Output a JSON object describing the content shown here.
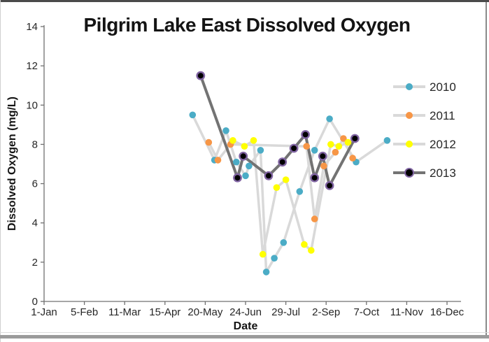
{
  "window": {
    "background_color": "#FFFFFF",
    "frame_top_color": "#4A4A4A",
    "frame_bottom_color": "#9B9B9B"
  },
  "chart_data": {
    "type": "line",
    "title": "Pilgrim Lake East Dissolved Oxygen",
    "xlabel": "Date",
    "ylabel": "Dissolved Oxygen (mg/L)",
    "grid": false,
    "legend_position": "right",
    "x_unit": "day of year (1-Jan = 0)",
    "xlim": [
      0,
      364
    ],
    "ylim": [
      0,
      14
    ],
    "y_ticks": [
      0,
      2,
      4,
      6,
      8,
      10,
      12,
      14
    ],
    "x_ticks": [
      {
        "day": 0,
        "label": "1-Jan"
      },
      {
        "day": 35,
        "label": "5-Feb"
      },
      {
        "day": 70,
        "label": "11-Mar"
      },
      {
        "day": 105,
        "label": "15-Apr"
      },
      {
        "day": 140,
        "label": "20-May"
      },
      {
        "day": 175,
        "label": "24-Jun"
      },
      {
        "day": 210,
        "label": "29-Jul"
      },
      {
        "day": 245,
        "label": "2-Sep"
      },
      {
        "day": 280,
        "label": "7-Oct"
      },
      {
        "day": 315,
        "label": "11-Nov"
      },
      {
        "day": 350,
        "label": "16-Dec"
      }
    ],
    "axis_color": "#707070",
    "tick_label_color": "#262626",
    "series": [
      {
        "name": "2010",
        "marker_color": "#4BACC6",
        "line_color": "#D9D9D9",
        "marker_size": "small",
        "points": [
          [
            129,
            9.5
          ],
          [
            148,
            7.2
          ],
          [
            158,
            8.7
          ],
          [
            167,
            7.1
          ],
          [
            175,
            6.4
          ],
          [
            178,
            6.9
          ],
          [
            188,
            7.7
          ],
          [
            193,
            1.5
          ],
          [
            200,
            2.2
          ],
          [
            208,
            3.0
          ],
          [
            222,
            5.6
          ],
          [
            235,
            7.7
          ],
          [
            248,
            9.3
          ],
          [
            271,
            7.1
          ],
          [
            298,
            8.2
          ]
        ]
      },
      {
        "name": "2011",
        "marker_color": "#F79646",
        "line_color": "#D9D9D9",
        "marker_size": "small",
        "points": [
          [
            143,
            8.1
          ],
          [
            151,
            7.2
          ],
          [
            162,
            8.0
          ],
          [
            228,
            7.9
          ],
          [
            235,
            4.2
          ],
          [
            243,
            6.9
          ],
          [
            253,
            7.6
          ],
          [
            260,
            8.3
          ],
          [
            268,
            7.3
          ]
        ]
      },
      {
        "name": "2012",
        "marker_color": "#FFFF00",
        "line_color": "#D9D9D9",
        "marker_size": "small",
        "points": [
          [
            164,
            8.2
          ],
          [
            174,
            7.9
          ],
          [
            182,
            8.2
          ],
          [
            190,
            2.4
          ],
          [
            202,
            5.8
          ],
          [
            210,
            6.2
          ],
          [
            226,
            2.9
          ],
          [
            232,
            2.6
          ],
          [
            249,
            8.0
          ],
          [
            256,
            7.9
          ],
          [
            264,
            8.1
          ]
        ]
      },
      {
        "name": "2013",
        "marker_color": "#000000",
        "marker_outline_color": "#8064A2",
        "line_color": "#737373",
        "marker_size": "large",
        "points": [
          [
            136,
            11.5
          ],
          [
            168,
            6.3
          ],
          [
            173,
            7.4
          ],
          [
            195,
            6.4
          ],
          [
            207,
            7.1
          ],
          [
            217,
            7.8
          ],
          [
            227,
            8.5
          ],
          [
            235,
            6.3
          ],
          [
            242,
            7.4
          ],
          [
            248,
            5.9
          ],
          [
            270,
            8.3
          ]
        ]
      }
    ]
  }
}
